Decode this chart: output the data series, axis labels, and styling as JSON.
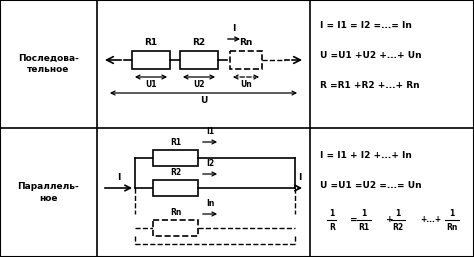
{
  "bg_color": "#ffffff",
  "c1": 0.205,
  "c2": 0.655,
  "r_mid": 0.497,
  "row1_label": "Последова-\nтельное",
  "row2_label": "Параллель-\nное",
  "row1_f1": "I = I1 = I2 =...= In",
  "row1_f2": "U =U1 +U2 +...+ Un",
  "row1_f3": "R =R1 +R2 +...+ Rn",
  "row2_f1": "I = I1 + I2 +...+ In",
  "row2_f2": "U =U1 =U2 =...= Un"
}
